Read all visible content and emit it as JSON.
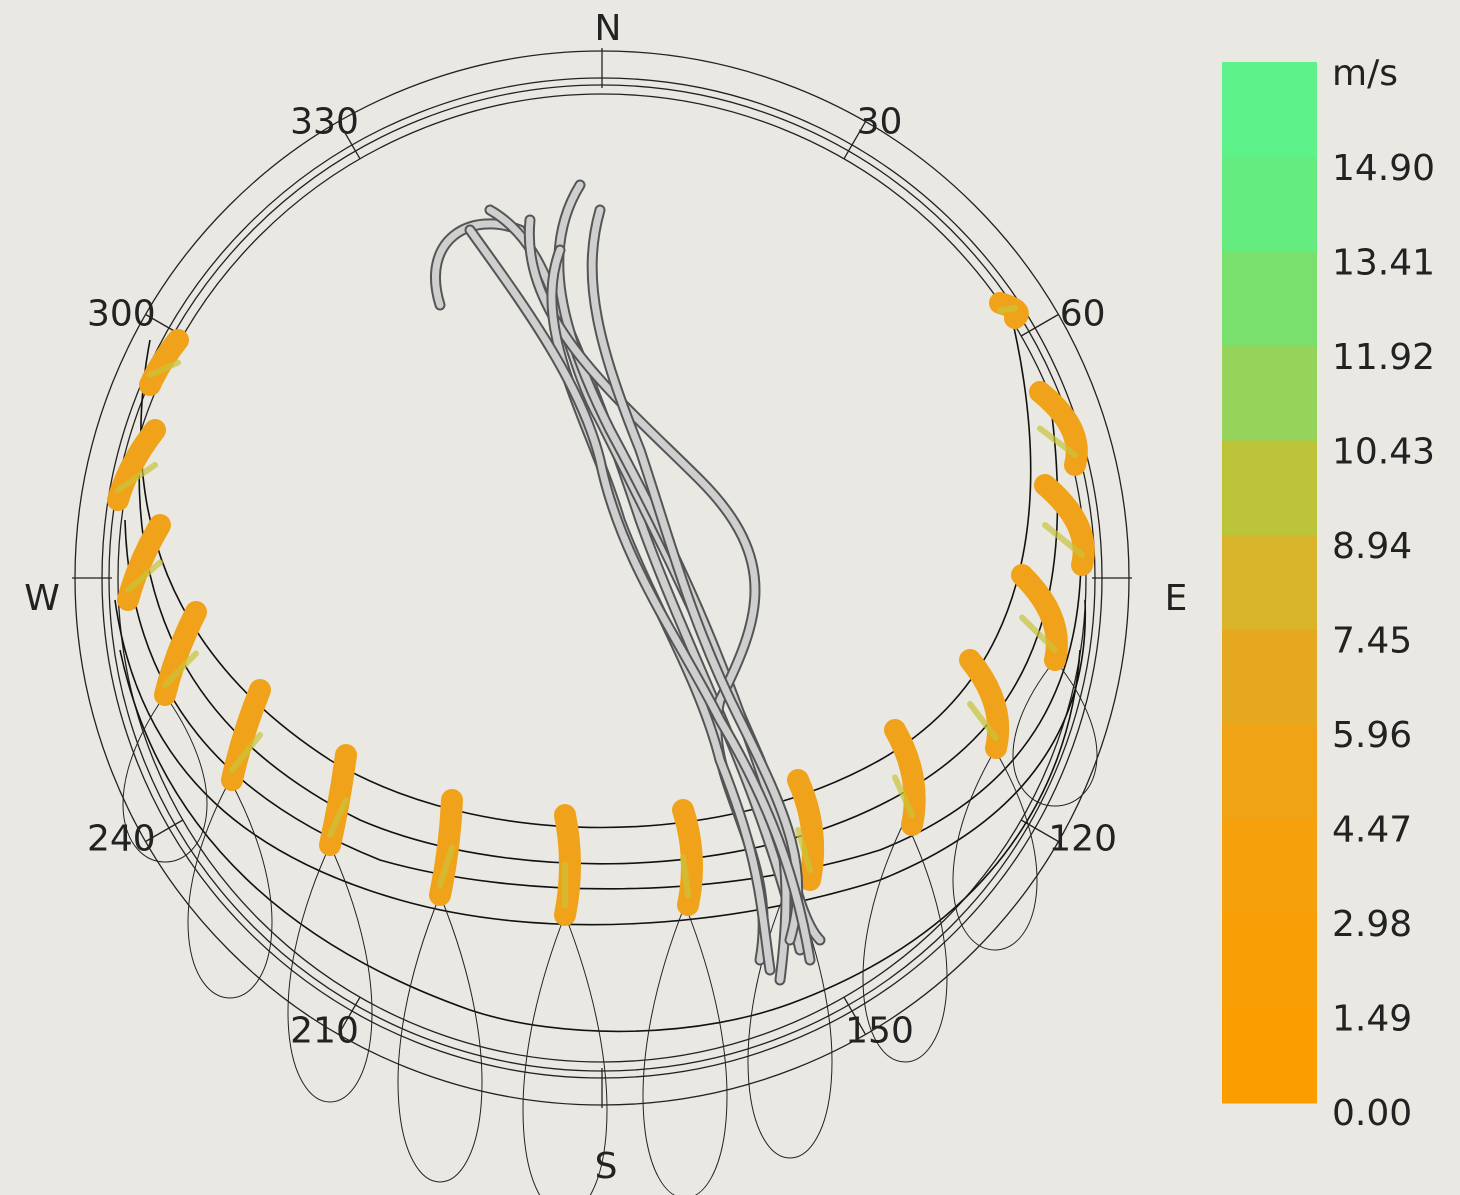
{
  "compass": {
    "north": "N",
    "east": "E",
    "south": "S",
    "west": "W"
  },
  "angles": [
    "30",
    "60",
    "120",
    "150",
    "210",
    "240",
    "300",
    "330"
  ],
  "legend": {
    "unit": "m/s",
    "labels": [
      "14.90",
      "13.41",
      "11.92",
      "10.43",
      "8.94",
      "7.45",
      "5.96",
      "4.47",
      "2.98",
      "1.49",
      "0.00"
    ]
  }
}
